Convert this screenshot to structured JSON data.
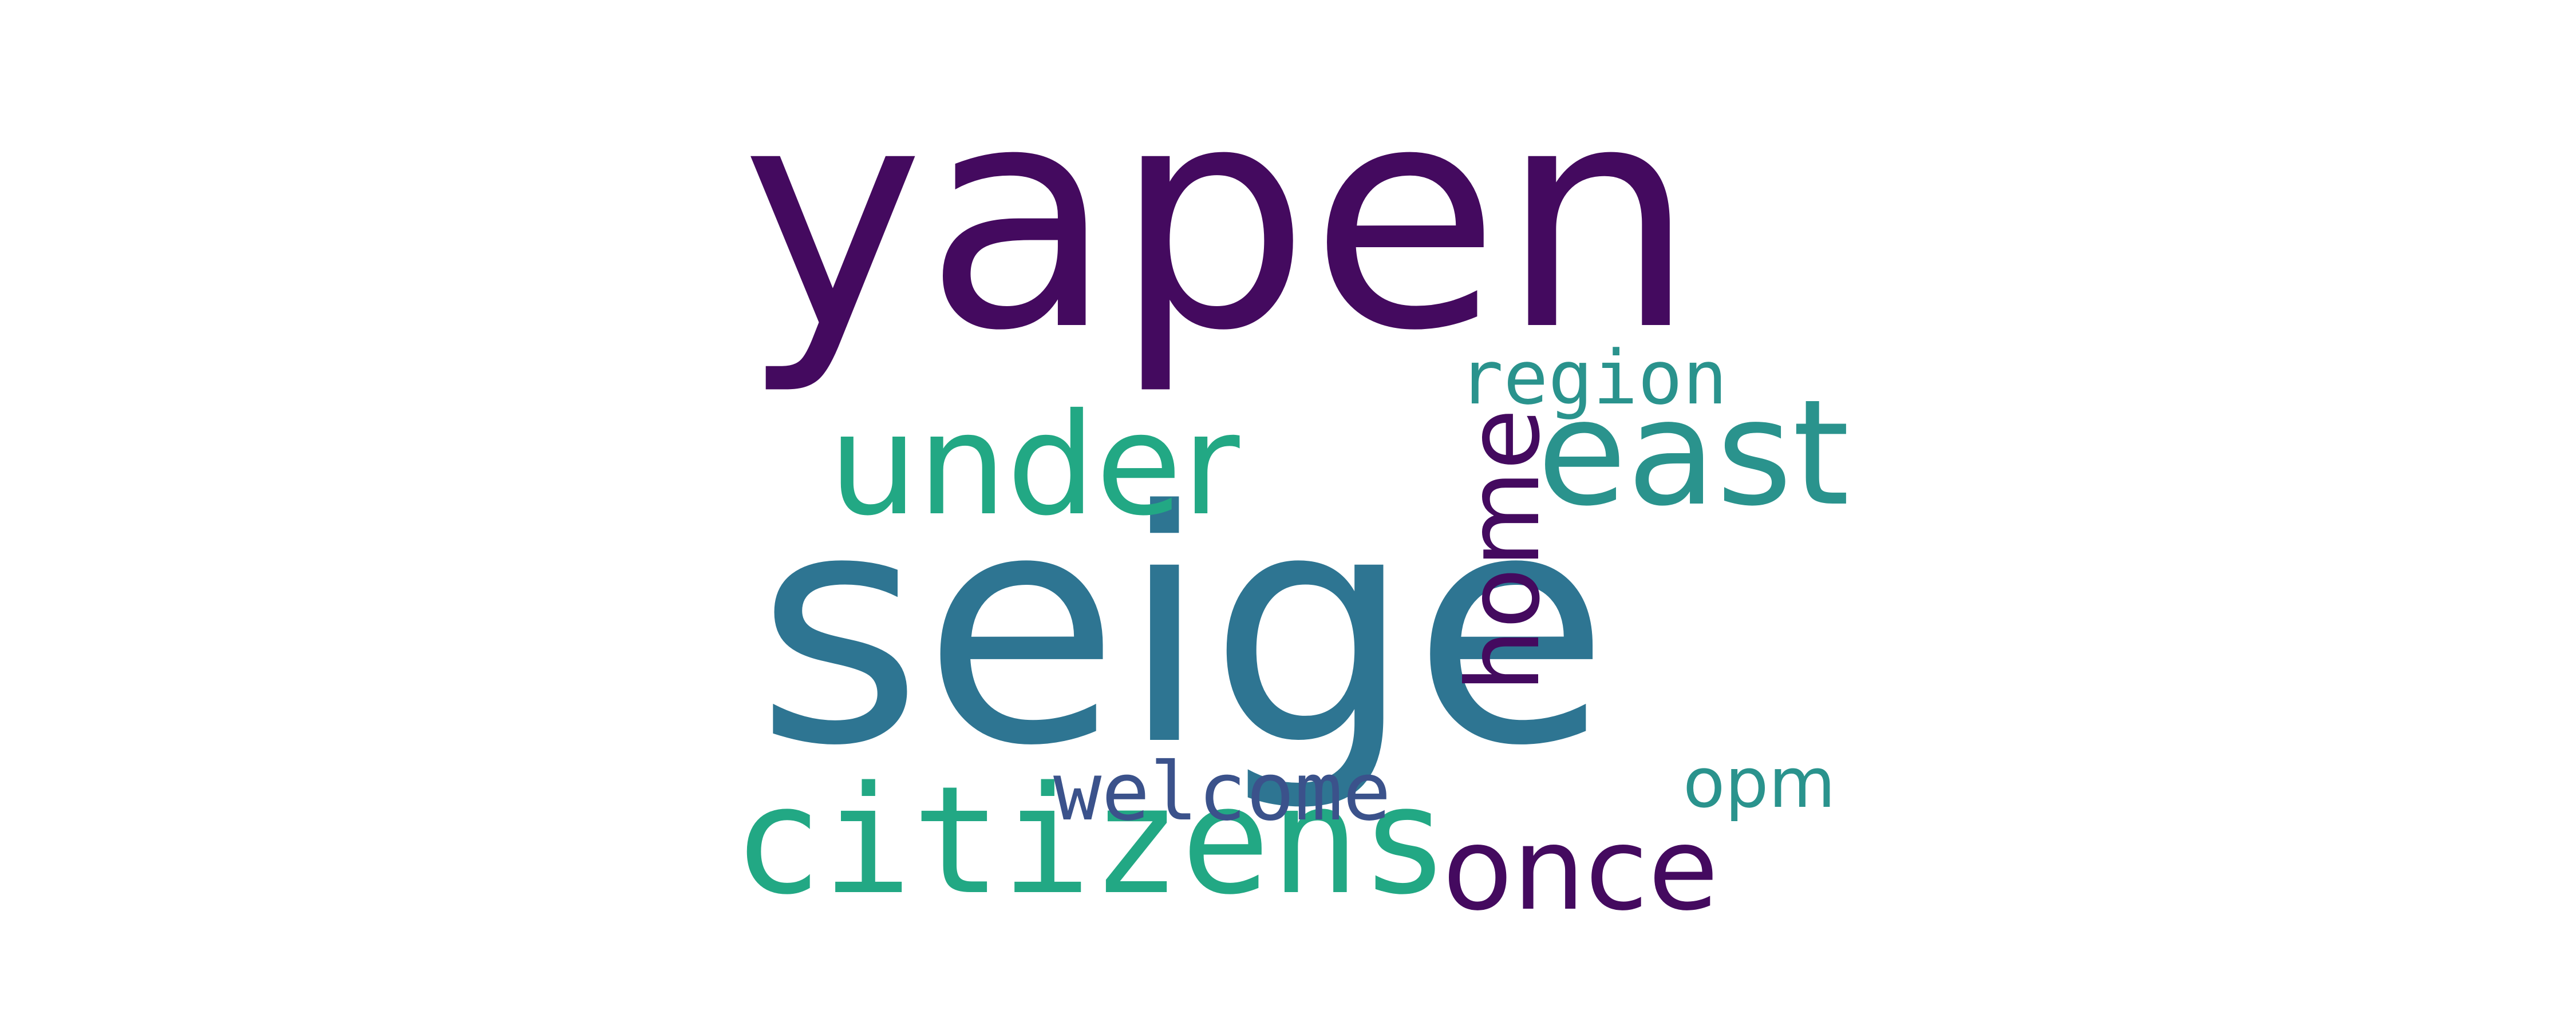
{
  "colors": {
    "background": "#ffffff",
    "dark_purple": "#440a5f",
    "teal_blue": "#2e7592",
    "green": "#22a884",
    "indigo": "#3b528b",
    "teal": "#2a938d"
  },
  "words": {
    "yapen": "yapen",
    "seige": "seige",
    "east": "east",
    "under": "under",
    "citizens": "citizens",
    "once": "once",
    "region": "region",
    "opm": "opm",
    "welcome": "welcome",
    "home": "home"
  }
}
